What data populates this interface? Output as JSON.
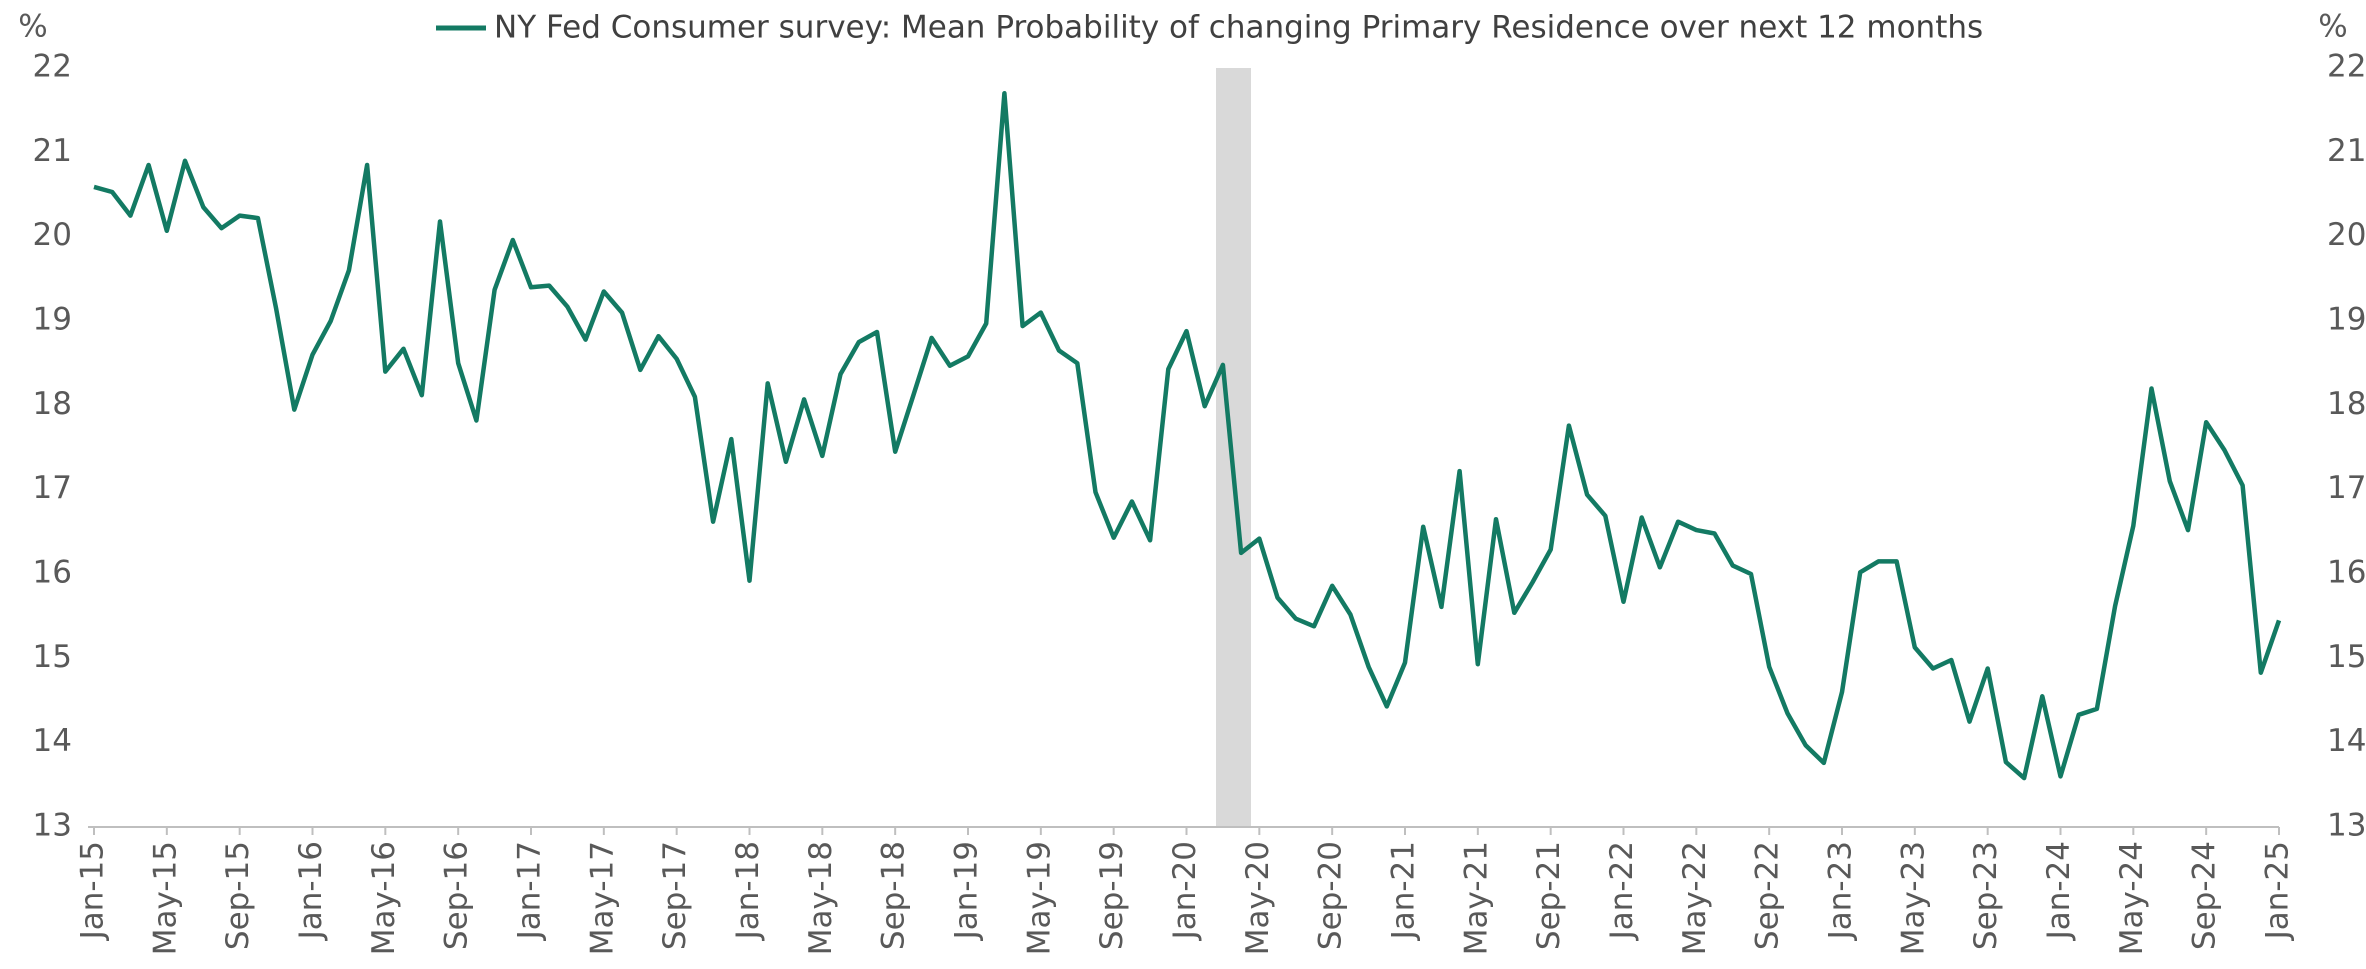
{
  "chart_data": {
    "type": "line",
    "ylabel": "%",
    "y2label": "%",
    "categories": [
      "Jan-15",
      null,
      null,
      null,
      "May-15",
      null,
      null,
      null,
      "Sep-15",
      null,
      null,
      null,
      "Jan-16",
      null,
      null,
      null,
      "May-16",
      null,
      null,
      null,
      "Sep-16",
      null,
      null,
      null,
      "Jan-17",
      null,
      null,
      null,
      "May-17",
      null,
      null,
      null,
      "Sep-17",
      null,
      null,
      null,
      "Jan-18",
      null,
      null,
      null,
      "May-18",
      null,
      null,
      null,
      "Sep-18",
      null,
      null,
      null,
      "Jan-19",
      null,
      null,
      null,
      "May-19",
      null,
      null,
      null,
      "Sep-19",
      null,
      null,
      null,
      "Jan-20",
      null,
      null,
      null,
      "May-20",
      null,
      null,
      null,
      "Sep-20",
      null,
      null,
      null,
      "Jan-21",
      null,
      null,
      null,
      "May-21",
      null,
      null,
      null,
      "Sep-21",
      null,
      null,
      null,
      "Jan-22",
      null,
      null,
      null,
      "May-22",
      null,
      null,
      null,
      "Sep-22",
      null,
      null,
      null,
      "Jan-23",
      null,
      null,
      null,
      "May-23",
      null,
      null,
      null,
      "Sep-23",
      null,
      null,
      null,
      "Jan-24",
      null,
      null,
      null,
      "May-24",
      null,
      null,
      null,
      "Sep-24",
      null,
      null,
      null,
      "Jan-25"
    ],
    "series": [
      {
        "name": "NY Fed Consumer survey: Mean Probability of changing Primary Residence over next 12 months",
        "color": "#137a63",
        "values": [
          20.59,
          20.53,
          20.25,
          20.85,
          20.07,
          20.9,
          20.35,
          20.1,
          20.25,
          20.22,
          19.15,
          17.95,
          18.6,
          19.0,
          19.6,
          20.85,
          18.4,
          18.67,
          18.12,
          20.18,
          18.5,
          17.82,
          19.37,
          19.96,
          19.4,
          19.42,
          19.17,
          18.78,
          19.35,
          19.1,
          18.42,
          18.82,
          18.55,
          18.1,
          16.62,
          17.6,
          15.92,
          18.26,
          17.33,
          18.07,
          17.4,
          18.37,
          18.75,
          18.87,
          17.45,
          18.12,
          18.8,
          18.47,
          18.58,
          18.97,
          21.7,
          18.94,
          19.1,
          18.65,
          18.5,
          16.97,
          16.43,
          16.86,
          16.4,
          18.43,
          18.88,
          17.99,
          18.48,
          16.25,
          16.42,
          15.72,
          15.47,
          15.38,
          15.86,
          15.52,
          14.9,
          14.43,
          14.95,
          16.56,
          15.61,
          17.22,
          14.93,
          16.65,
          15.54,
          15.9,
          16.29,
          17.76,
          16.94,
          16.69,
          15.67,
          16.67,
          16.08,
          16.62,
          16.52,
          16.48,
          16.1,
          16.0,
          14.9,
          14.35,
          13.97,
          13.76,
          14.6,
          16.02,
          16.15,
          16.15,
          15.13,
          14.88,
          14.98,
          14.25,
          14.88,
          13.77,
          13.58,
          14.55,
          13.6,
          14.33,
          14.4,
          15.62,
          16.57,
          18.2,
          17.1,
          16.52,
          17.8,
          17.47,
          17.05,
          14.83,
          15.45
        ]
      }
    ],
    "ylim": [
      13,
      22
    ],
    "yticks": [
      13,
      14,
      15,
      16,
      17,
      18,
      19,
      20,
      21,
      22
    ],
    "y2lim": [
      13,
      22
    ],
    "y2ticks": [
      13,
      14,
      15,
      16,
      17,
      18,
      19,
      20,
      21,
      22
    ],
    "grid": false
  }
}
